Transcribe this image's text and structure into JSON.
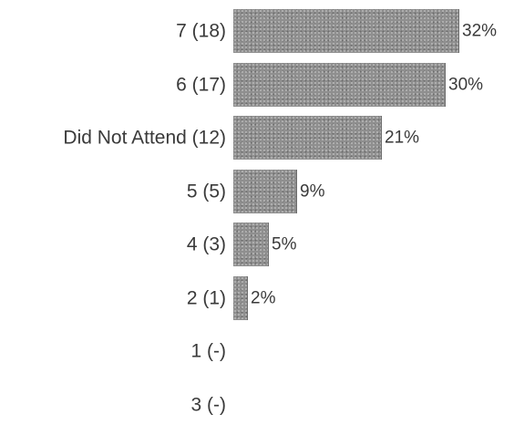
{
  "chart_data": {
    "type": "bar",
    "orientation": "horizontal",
    "categories": [
      "7 (18)",
      "6 (17)",
      "Did Not Attend (12)",
      "5 (5)",
      "4 (3)",
      "2 (1)",
      "1  (-)",
      "3 (-)"
    ],
    "values": [
      32,
      30,
      21,
      9,
      5,
      2,
      0,
      0
    ],
    "value_labels": [
      "32%",
      "30%",
      "21%",
      "9%",
      "5%",
      "2%",
      "",
      ""
    ],
    "unit": "%",
    "xlim": [
      0,
      32
    ],
    "grid": false,
    "legend": "none",
    "colors": {
      "bar": "#8f8f8f",
      "text": "#3a3a3a"
    }
  }
}
